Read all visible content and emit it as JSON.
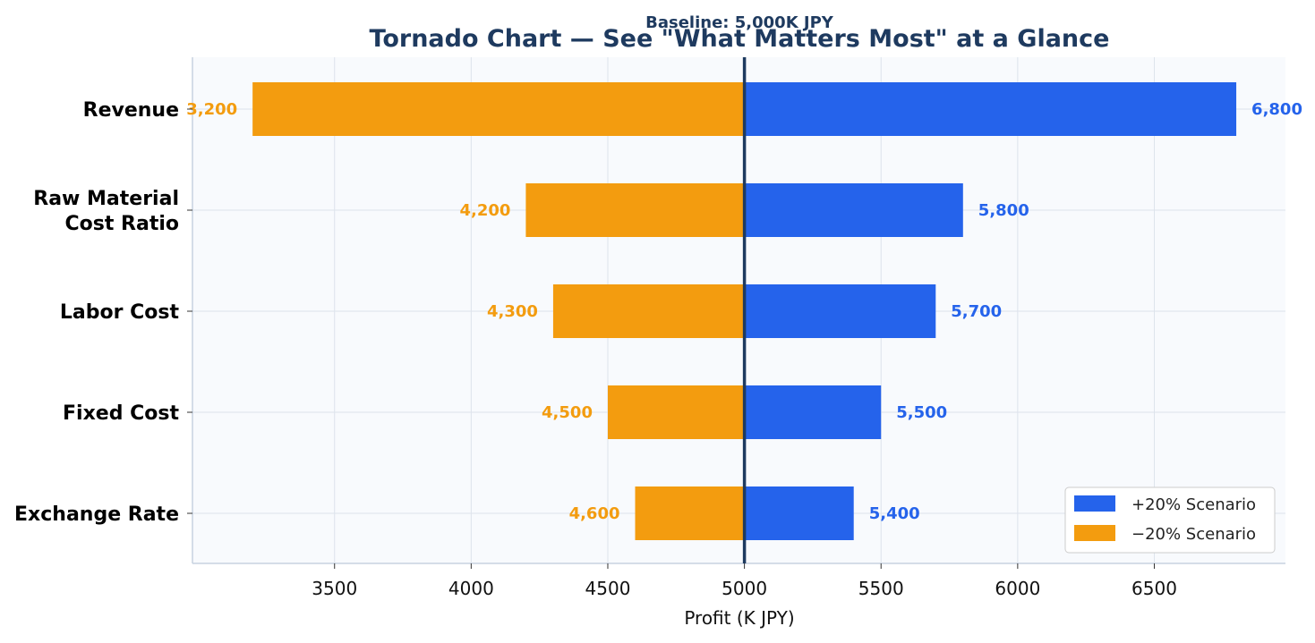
{
  "chart_data": {
    "type": "bar",
    "orientation": "horizontal",
    "title": "Tornado Chart — See \"What Matters Most\" at a Glance",
    "subtitle": "Baseline: 5,000K JPY",
    "xlabel": "Profit (K JPY)",
    "ylabel": "",
    "baseline": 5000,
    "xlim": [
      2980,
      6980
    ],
    "xticks": [
      3500,
      4000,
      4500,
      5000,
      5500,
      6000,
      6500
    ],
    "categories": [
      "Revenue",
      "Raw Material\nCost Ratio",
      "Labor Cost",
      "Fixed Cost",
      "Exchange Rate"
    ],
    "series": [
      {
        "name": "+20% Scenario",
        "values": [
          6800,
          5800,
          5700,
          5500,
          5400
        ],
        "labels": [
          "6,800",
          "5,800",
          "5,700",
          "5,500",
          "5,400"
        ]
      },
      {
        "name": "−20% Scenario",
        "values": [
          3200,
          4200,
          4300,
          4500,
          4600
        ],
        "labels": [
          "3,200",
          "4,200",
          "4,300",
          "4,500",
          "4,600"
        ]
      }
    ],
    "grid": true,
    "legend_position": "bottom-right",
    "colors": {
      "plus": "#2563eb",
      "minus": "#f39c0f",
      "baseline": "#1e3a5f",
      "title": "#1e3a5f",
      "plot_bg": "#f8fafd",
      "grid": "#dde3ec"
    }
  }
}
